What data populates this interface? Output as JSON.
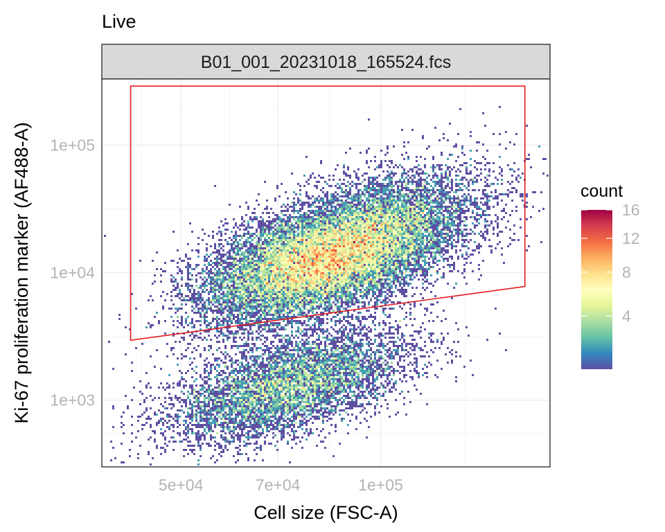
{
  "chart_data": {
    "type": "heatmap",
    "subtype": "2d-density-scatter-with-gate",
    "title": "Live",
    "facet_label": "B01_001_20231018_165524.fcs",
    "xlabel": "Cell size (FSC-A)",
    "ylabel": "Ki-67 proliferation marker (AF488-A)",
    "x_scale": "log",
    "y_scale": "log",
    "xlim": [
      38000,
      180000
    ],
    "ylim": [
      300,
      330000
    ],
    "x_ticks": [
      50000,
      70000,
      100000
    ],
    "x_tick_labels": [
      "5e+04",
      "7e+04",
      "1e+05"
    ],
    "y_ticks": [
      1000,
      10000,
      100000
    ],
    "y_tick_labels": [
      "1e+03",
      "1e+04",
      "1e+05"
    ],
    "grid": true,
    "legend": {
      "title": "count",
      "position": "right",
      "type": "colorbar",
      "range": [
        1,
        16
      ],
      "ticks": [
        4,
        8,
        12,
        16
      ],
      "tick_labels": [
        "4",
        "8",
        "12",
        "16"
      ],
      "palette": [
        "#5E4FA2",
        "#3288BD",
        "#66C2A5",
        "#ABDDA4",
        "#E6F598",
        "#FFFFBF",
        "#FEE08B",
        "#FDAE61",
        "#F46D43",
        "#D53E4F",
        "#9E0142"
      ]
    },
    "clusters": [
      {
        "name": "",
        "center": [
          82000,
          12500
        ],
        "sd_log10": [
          0.09,
          0.24
        ],
        "weight": 0.55
      },
      {
        "name": "",
        "center": [
          95000,
          20000
        ],
        "sd_log10": [
          0.1,
          0.28
        ],
        "weight": 0.2
      },
      {
        "name": "",
        "center": [
          73000,
          1300
        ],
        "sd_log10": [
          0.09,
          0.22
        ],
        "weight": 0.25
      }
    ],
    "gate": {
      "color": "#E41A1C",
      "vertices": [
        [
          42000,
          290000
        ],
        [
          165000,
          290000
        ],
        [
          165000,
          7800
        ],
        [
          42000,
          2950
        ]
      ]
    }
  }
}
